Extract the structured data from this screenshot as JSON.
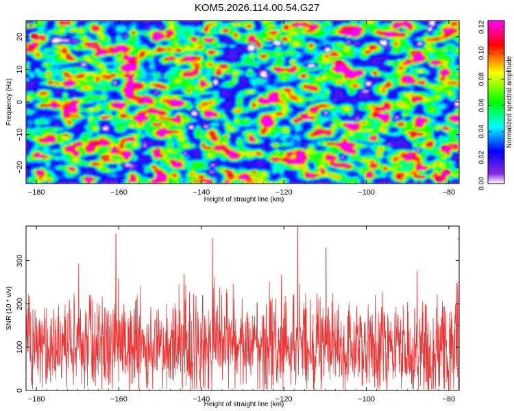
{
  "title": "KOM5.2026.114.00.54.G27",
  "chart_data": [
    {
      "type": "heatmap",
      "xlabel": "Height of straight line (km)",
      "ylabel": "Frequency (Hz)",
      "xlim": [
        -182.5,
        -77.5
      ],
      "ylim": [
        -25,
        25
      ],
      "xticks": [
        -180,
        -160,
        -140,
        -120,
        -100,
        -80
      ],
      "yticks": [
        20,
        10,
        0,
        -10,
        -20
      ],
      "colorbar": {
        "label": "Normalized spectral amplitude",
        "range": [
          0,
          0.125
        ],
        "ticks": [
          0.0,
          0.02,
          0.04,
          0.06,
          0.08,
          0.1,
          0.12
        ],
        "colors": [
          "#ffffff",
          "#8a2be2",
          "#0000ff",
          "#00ffff",
          "#00ff00",
          "#ffff00",
          "#ff0000",
          "#ff00ff"
        ]
      },
      "hotspots": [
        {
          "x": -180.5,
          "y": 20.2,
          "value": 0.11
        },
        {
          "x": -166,
          "y": 17.5,
          "value": 0.1
        },
        {
          "x": -88.5,
          "y": 15,
          "value": 0.1
        },
        {
          "x": -106.5,
          "y": 12,
          "value": 0.11
        },
        {
          "x": -131.5,
          "y": -2.5,
          "value": 0.09
        },
        {
          "x": -173,
          "y": -11,
          "value": 0.08
        },
        {
          "x": -163.5,
          "y": -17,
          "value": 0.1
        },
        {
          "x": -81,
          "y": -14,
          "value": 0.12
        },
        {
          "x": -80.5,
          "y": -21.5,
          "value": 0.12
        },
        {
          "x": -82.5,
          "y": -23.5,
          "value": 0.11
        }
      ]
    },
    {
      "type": "line",
      "xlabel": "Height of straight line (km)",
      "ylabel": "SNR (10 * v/v)",
      "xlim": [
        -182.5,
        -77.5
      ],
      "ylim": [
        0,
        380
      ],
      "xticks": [
        -180,
        -160,
        -140,
        -120,
        -100,
        -80
      ],
      "yticks": [
        0,
        100,
        200,
        300
      ],
      "series": [
        {
          "name": "SNR",
          "color": "#ee3333"
        }
      ],
      "peaks": [
        {
          "x": -160.7,
          "y": 362
        },
        {
          "x": -116.7,
          "y": 382
        },
        {
          "x": -137.3,
          "y": 352
        },
        {
          "x": -109.8,
          "y": 330
        }
      ],
      "noise_mean": 100,
      "noise_typical_max": 260
    }
  ]
}
